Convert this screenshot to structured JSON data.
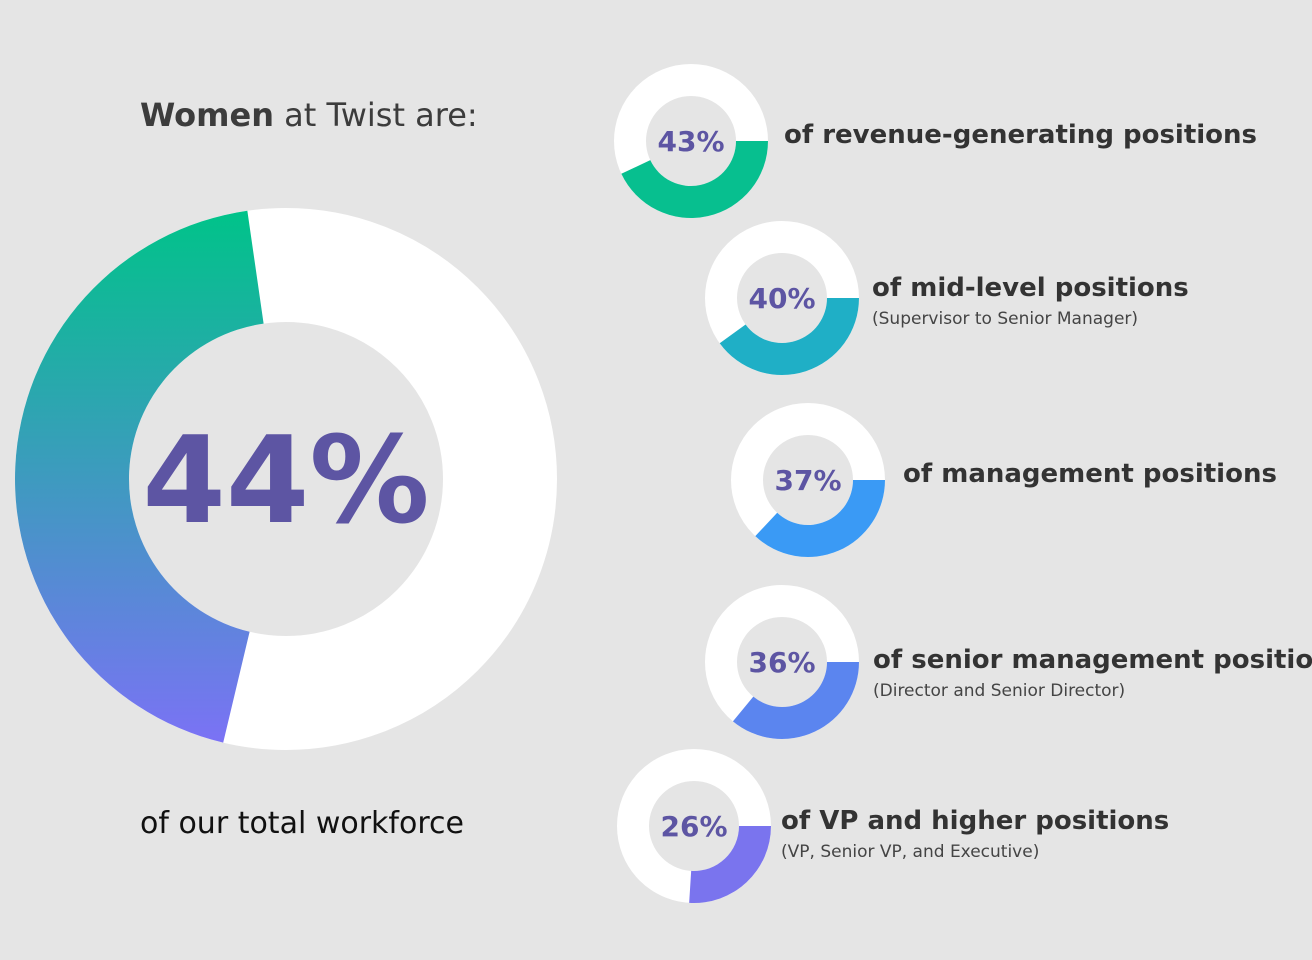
{
  "headline": {
    "bold": "Women",
    "rest": " at Twist are:"
  },
  "chart_data": [
    {
      "type": "pie",
      "variant": "donut",
      "center_label": "44%",
      "value": 44,
      "caption": "of our total workforce",
      "colors": {
        "fill_gradient": [
          "#00c389",
          "#7b72f5"
        ],
        "track": "#ffffff"
      }
    },
    {
      "type": "pie",
      "variant": "donut",
      "center_label": "43%",
      "value": 43,
      "label": "of revenue-generating positions",
      "sublabel": "",
      "color": "#07bf8f"
    },
    {
      "type": "pie",
      "variant": "donut",
      "center_label": "40%",
      "value": 40,
      "label": "of mid-level positions",
      "sublabel": "(Supervisor to Senior Manager)",
      "color": "#1fafc6"
    },
    {
      "type": "pie",
      "variant": "donut",
      "center_label": "37%",
      "value": 37,
      "label": "of management positions",
      "sublabel": "",
      "color": "#3a9af5"
    },
    {
      "type": "pie",
      "variant": "donut",
      "center_label": "36%",
      "value": 36,
      "label": "of senior management positions",
      "sublabel": "(Director and Senior Director)",
      "color": "#5b85ef"
    },
    {
      "type": "pie",
      "variant": "donut",
      "center_label": "26%",
      "value": 26,
      "label": "of VP and higher positions",
      "sublabel": "(VP, Senior VP, and Executive)",
      "color": "#7a74ee"
    }
  ],
  "theme": {
    "value_text": "#5d55a3",
    "background": "#e5e5e5"
  }
}
